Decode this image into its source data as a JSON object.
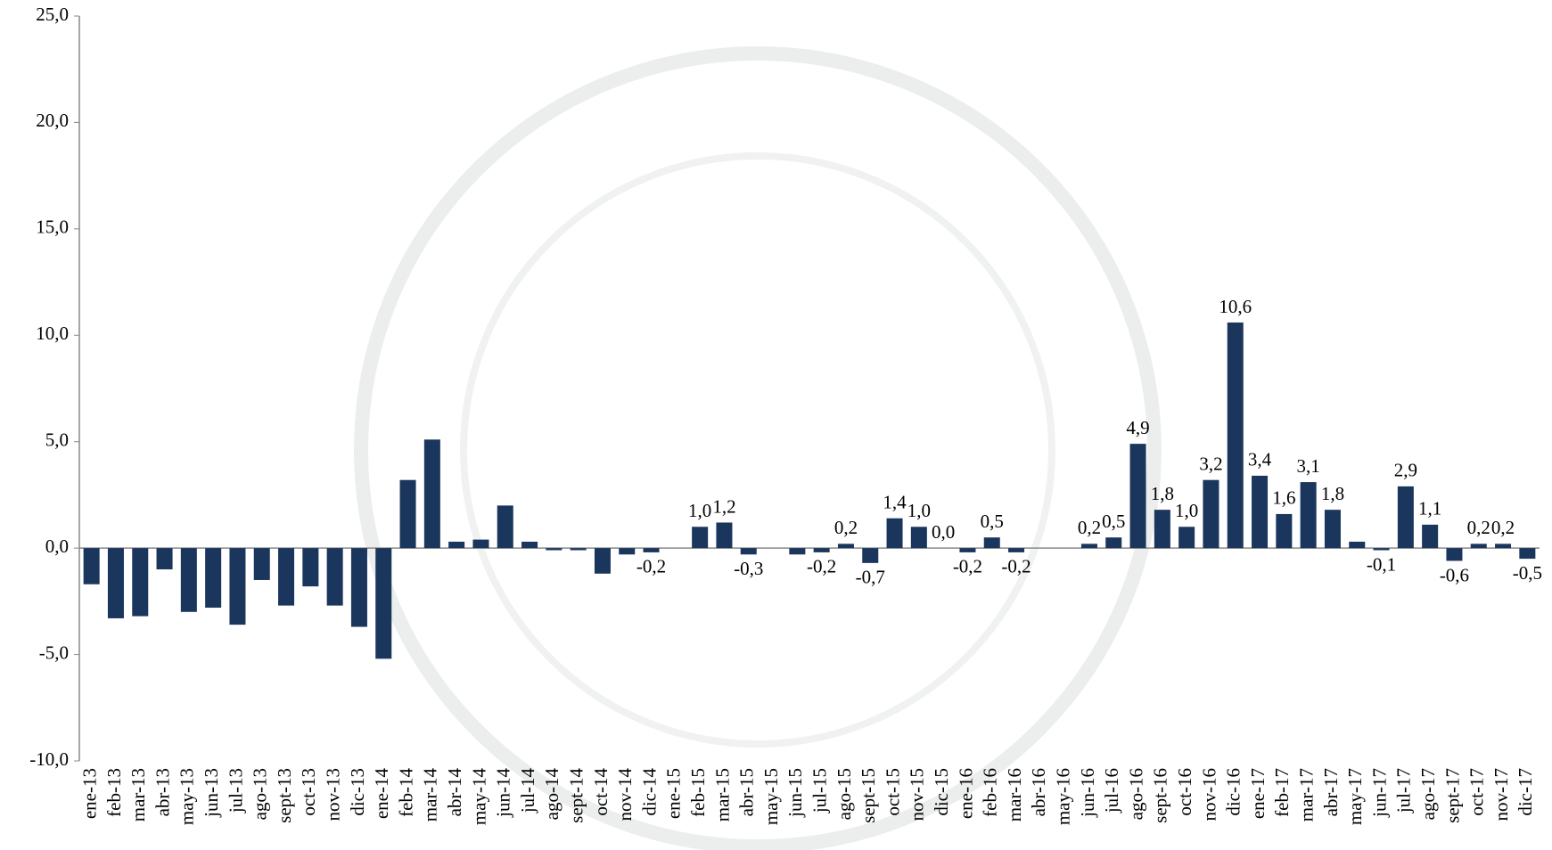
{
  "chart_data": {
    "type": "bar",
    "categories": [
      "ene-13",
      "feb-13",
      "mar-13",
      "abr-13",
      "may-13",
      "jun-13",
      "jul-13",
      "ago-13",
      "sept-13",
      "oct-13",
      "nov-13",
      "dic-13",
      "ene-14",
      "feb-14",
      "mar-14",
      "abr-14",
      "may-14",
      "jun-14",
      "jul-14",
      "ago-14",
      "sept-14",
      "oct-14",
      "nov-14",
      "dic-14",
      "ene-15",
      "feb-15",
      "mar-15",
      "abr-15",
      "may-15",
      "jun-15",
      "jul-15",
      "ago-15",
      "sept-15",
      "oct-15",
      "nov-15",
      "dic-15",
      "ene-16",
      "feb-16",
      "mar-16",
      "abr-16",
      "may-16",
      "jun-16",
      "jul-16",
      "ago-16",
      "sept-16",
      "oct-16",
      "nov-16",
      "dic-16",
      "ene-17",
      "feb-17",
      "mar-17",
      "abr-17",
      "may-17",
      "jun-17",
      "jul-17",
      "ago-17",
      "sept-17",
      "oct-17",
      "nov-17",
      "dic-17"
    ],
    "values": [
      -1.7,
      -3.3,
      -3.2,
      -1.0,
      -3.0,
      -2.8,
      -3.6,
      -1.5,
      -2.7,
      -1.8,
      -2.7,
      -3.7,
      -5.2,
      3.2,
      5.1,
      0.3,
      0.4,
      2.0,
      0.3,
      -0.1,
      -0.1,
      -1.2,
      -0.3,
      -0.2,
      0,
      1.0,
      1.2,
      -0.3,
      0,
      -0.3,
      -0.2,
      0.2,
      -0.7,
      1.4,
      1.0,
      0.0,
      -0.2,
      0.5,
      -0.2,
      0,
      0,
      0.2,
      0.5,
      4.9,
      1.8,
      1.0,
      3.2,
      10.6,
      3.4,
      1.6,
      3.1,
      1.8,
      0.3,
      -0.1,
      2.9,
      1.1,
      -0.6,
      0.2,
      0.2,
      -0.5
    ],
    "value_labels": [
      null,
      null,
      null,
      null,
      null,
      null,
      null,
      null,
      null,
      null,
      null,
      null,
      null,
      null,
      null,
      null,
      null,
      null,
      null,
      null,
      null,
      null,
      null,
      "-0,2",
      null,
      "1,0",
      "1,2",
      "-0,3",
      null,
      null,
      "-0,2",
      "0,2",
      "-0,7",
      "1,4",
      "1,0",
      "0,0",
      "-0,2",
      "0,5",
      "-0,2",
      null,
      null,
      "0,2",
      "0,5",
      "4,9",
      "1,8",
      "1,0",
      "3,2",
      "10,6",
      "3,4",
      "1,6",
      "3,1",
      "1,8",
      null,
      "-0,1",
      "2,9",
      "1,1",
      "-0,6",
      "0,2",
      "0,2",
      "-0,5"
    ],
    "color": "#1b365d",
    "ylim": [
      -10,
      25
    ],
    "yticks": [
      {
        "value": -10,
        "label": "-10,0"
      },
      {
        "value": -5,
        "label": "-5,0"
      },
      {
        "value": 0,
        "label": "0,0"
      },
      {
        "value": 5,
        "label": "5,0"
      },
      {
        "value": 10,
        "label": "10,0"
      },
      {
        "value": 15,
        "label": "15,0"
      },
      {
        "value": 20,
        "label": "20,0"
      },
      {
        "value": 25,
        "label": "25,0"
      }
    ],
    "grid": false
  }
}
